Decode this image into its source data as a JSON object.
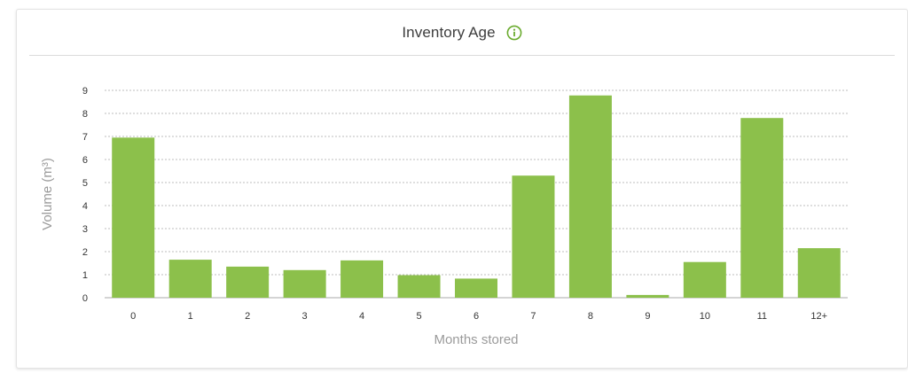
{
  "card": {
    "title": "Inventory Age",
    "info_icon": "info-circle-icon"
  },
  "colors": {
    "bar": "#8cc04b",
    "accent": "#6aab2e",
    "grid": "#bdbdbd"
  },
  "chart_data": {
    "type": "bar",
    "title": "Inventory Age",
    "xlabel": "Months stored",
    "ylabel": "Volume (m³)",
    "categories": [
      "0",
      "1",
      "2",
      "3",
      "4",
      "5",
      "6",
      "7",
      "8",
      "9",
      "10",
      "11",
      "12+"
    ],
    "values": [
      6.95,
      1.65,
      1.35,
      1.2,
      1.62,
      0.98,
      0.83,
      5.3,
      8.78,
      0.12,
      1.55,
      7.8,
      2.15
    ],
    "ylim": [
      0,
      9
    ],
    "yticks": [
      0,
      1,
      2,
      3,
      4,
      5,
      6,
      7,
      8,
      9
    ],
    "grid": "horizontal-dashed",
    "legend": "none"
  }
}
